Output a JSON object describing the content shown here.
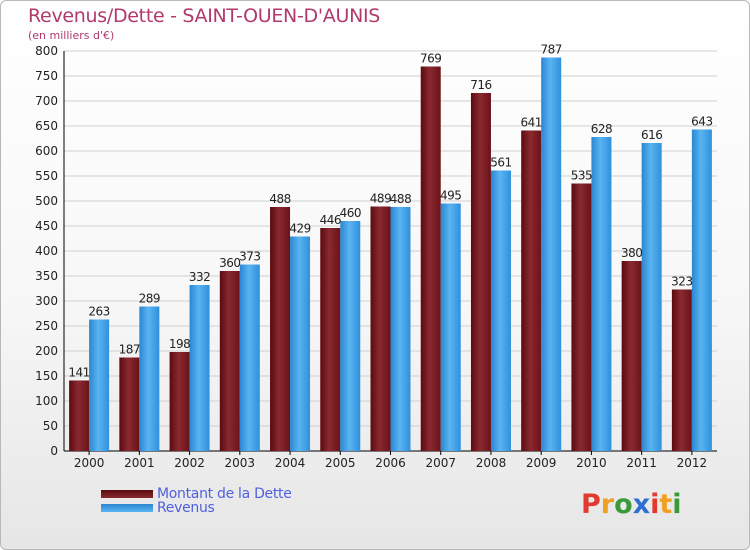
{
  "chart_data": {
    "type": "bar",
    "title": "Revenus/Dette - SAINT-OUEN-D'AUNIS",
    "subtitle": "(en milliers d'€)",
    "categories": [
      "2000",
      "2001",
      "2002",
      "2003",
      "2004",
      "2005",
      "2006",
      "2007",
      "2008",
      "2009",
      "2010",
      "2011",
      "2012"
    ],
    "series": [
      {
        "name": "Montant de la Dette",
        "values": [
          141,
          187,
          198,
          360,
          488,
          446,
          489,
          769,
          716,
          641,
          535,
          380,
          323
        ],
        "color": "#7a1e24"
      },
      {
        "name": "Revenus",
        "values": [
          263,
          289,
          332,
          373,
          429,
          460,
          488,
          495,
          561,
          787,
          628,
          616,
          643
        ],
        "color": "#3d9ee6"
      }
    ],
    "ylim": [
      0,
      800
    ],
    "yticks": [
      0,
      50,
      100,
      150,
      200,
      250,
      300,
      350,
      400,
      450,
      500,
      550,
      600,
      650,
      700,
      750,
      800
    ],
    "grid": true,
    "legend_position": "bottom-left"
  },
  "logo": {
    "letters": [
      "P",
      "r",
      "o",
      "x",
      "i",
      "t",
      "i"
    ],
    "colors": [
      "#e23a2f",
      "#f0a020",
      "#3a9a3a",
      "#2d6fd0",
      "#e23a2f",
      "#f0a020",
      "#3a9a3a"
    ]
  }
}
